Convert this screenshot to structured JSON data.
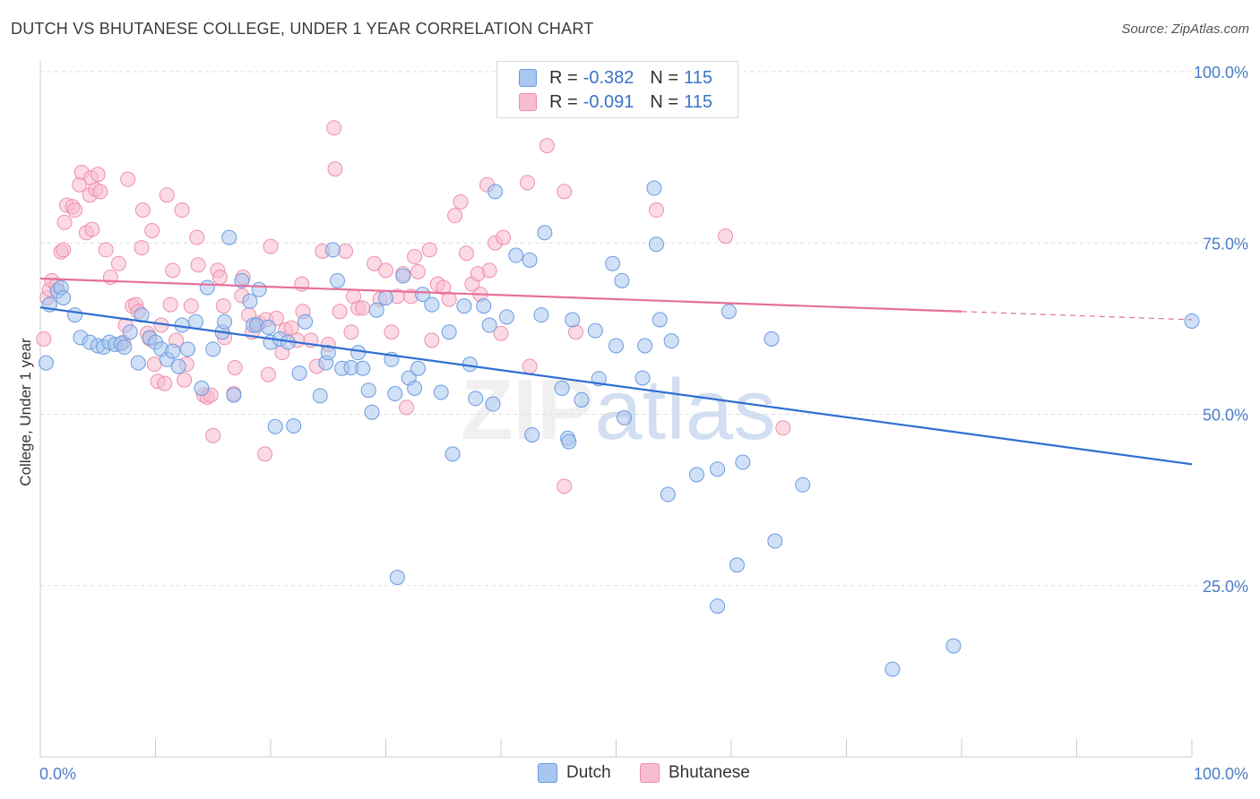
{
  "title": "DUTCH VS BHUTANESE COLLEGE, UNDER 1 YEAR CORRELATION CHART",
  "source": "Source: ZipAtlas.com",
  "watermark": "ZIPatlas",
  "legend": {
    "dutch": {
      "r_label": "R =",
      "r_value": "-0.382",
      "n_label": "N =",
      "n_value": "115"
    },
    "bhutanese": {
      "r_label": "R =",
      "r_value": "-0.091",
      "n_label": "N =",
      "n_value": "115"
    }
  },
  "colors": {
    "dutch_fill": "#a9c6ee",
    "dutch_stroke": "#6b9be0",
    "dutch_line": "#2f6fd1",
    "bhutanese_fill": "#f7bccd",
    "bhutanese_stroke": "#ee8fab",
    "bhutanese_line": "#e4709b",
    "axis_text": "#4a7cc9",
    "grid": "#dddddd"
  },
  "chart_data": {
    "type": "scatter",
    "title": "DUTCH VS BHUTANESE COLLEGE, UNDER 1 YEAR CORRELATION CHART",
    "xlabel": "",
    "ylabel": "College, Under 1 year",
    "xlim": [
      0,
      100
    ],
    "ylim": [
      0,
      100
    ],
    "x_tick_labels": [
      "0.0%",
      "100.0%"
    ],
    "y_tick_labels": [
      "25.0%",
      "50.0%",
      "75.0%",
      "100.0%"
    ],
    "y_ticks": [
      25,
      50,
      75,
      100
    ],
    "legend_position": "top-center",
    "grid": true,
    "series": [
      {
        "name": "Dutch",
        "trend": {
          "x": [
            0,
            100
          ],
          "y": [
            65.6,
            42.7
          ]
        },
        "points": [
          [
            0.5,
            57.5
          ],
          [
            0.8,
            66
          ],
          [
            1.5,
            68
          ],
          [
            1.8,
            68.5
          ],
          [
            2,
            67
          ],
          [
            3,
            64.5
          ],
          [
            3.5,
            61.2
          ],
          [
            4.3,
            60.5
          ],
          [
            5,
            60
          ],
          [
            5.5,
            59.8
          ],
          [
            6,
            60.5
          ],
          [
            6.5,
            60.2
          ],
          [
            7,
            60.3
          ],
          [
            7.3,
            59.8
          ],
          [
            7.8,
            62
          ],
          [
            8.5,
            57.5
          ],
          [
            8.8,
            64.5
          ],
          [
            9.5,
            61.2
          ],
          [
            10,
            60.5
          ],
          [
            10.5,
            59.5
          ],
          [
            11,
            58
          ],
          [
            11.5,
            59.2
          ],
          [
            12,
            57
          ],
          [
            12.3,
            63
          ],
          [
            12.8,
            59.5
          ],
          [
            13.5,
            63.5
          ],
          [
            14,
            53.8
          ],
          [
            14.5,
            68.5
          ],
          [
            15,
            59.5
          ],
          [
            15.8,
            62
          ],
          [
            16,
            63.5
          ],
          [
            16.4,
            75.8
          ],
          [
            16.8,
            52.8
          ],
          [
            17.5,
            69.5
          ],
          [
            18.2,
            66.5
          ],
          [
            18.5,
            63
          ],
          [
            18.8,
            63
          ],
          [
            19,
            68.2
          ],
          [
            19.8,
            62.7
          ],
          [
            20,
            60.5
          ],
          [
            20.4,
            48.2
          ],
          [
            20.8,
            61
          ],
          [
            21.5,
            60.5
          ],
          [
            22,
            48.3
          ],
          [
            22.5,
            56
          ],
          [
            23,
            63.5
          ],
          [
            24.3,
            52.7
          ],
          [
            24.8,
            57.5
          ],
          [
            25,
            59
          ],
          [
            25.4,
            74
          ],
          [
            25.8,
            69.5
          ],
          [
            26.2,
            56.7
          ],
          [
            27,
            56.8
          ],
          [
            27.6,
            59
          ],
          [
            28,
            56.7
          ],
          [
            28.5,
            53.5
          ],
          [
            28.8,
            50.3
          ],
          [
            29.2,
            65.2
          ],
          [
            30,
            67
          ],
          [
            30.5,
            58
          ],
          [
            30.8,
            53
          ],
          [
            31,
            26.2
          ],
          [
            31.5,
            70.2
          ],
          [
            32,
            55.3
          ],
          [
            32.5,
            53.8
          ],
          [
            32.8,
            56.7
          ],
          [
            33.2,
            67.5
          ],
          [
            34,
            66
          ],
          [
            34.8,
            53.2
          ],
          [
            35.5,
            62
          ],
          [
            35.8,
            44.2
          ],
          [
            36.8,
            65.8
          ],
          [
            37.3,
            57.3
          ],
          [
            37.8,
            52.3
          ],
          [
            38.5,
            65.8
          ],
          [
            39,
            63
          ],
          [
            39.3,
            51.5
          ],
          [
            39.5,
            82.5
          ],
          [
            40.5,
            64.2
          ],
          [
            41.3,
            73.2
          ],
          [
            42.5,
            72.5
          ],
          [
            42.7,
            47
          ],
          [
            43.5,
            64.5
          ],
          [
            43.8,
            76.5
          ],
          [
            45.3,
            53.8
          ],
          [
            45.8,
            46.5
          ],
          [
            45.9,
            46
          ],
          [
            46.2,
            63.8
          ],
          [
            47,
            52.1
          ],
          [
            48.2,
            62.2
          ],
          [
            48.5,
            55.2
          ],
          [
            49.7,
            72
          ],
          [
            50,
            60
          ],
          [
            50.5,
            69.5
          ],
          [
            50.7,
            49.5
          ],
          [
            52.3,
            55.3
          ],
          [
            52.5,
            60
          ],
          [
            53.3,
            83
          ],
          [
            53.5,
            74.8
          ],
          [
            53.8,
            63.8
          ],
          [
            54.8,
            60.7
          ],
          [
            54.5,
            38.3
          ],
          [
            57,
            41.2
          ],
          [
            58.8,
            22
          ],
          [
            58.8,
            42
          ],
          [
            59.8,
            65
          ],
          [
            60.5,
            28
          ],
          [
            61,
            43
          ],
          [
            63.5,
            61
          ],
          [
            63.8,
            31.5
          ],
          [
            66.2,
            39.7
          ],
          [
            74,
            12.8
          ],
          [
            79.3,
            16.2
          ],
          [
            100,
            63.6
          ]
        ]
      },
      {
        "name": "Bhutanese",
        "trend": {
          "x": [
            0,
            80
          ],
          "y": [
            69.8,
            65
          ]
        },
        "trend_dashed": {
          "x": [
            80,
            100
          ],
          "y": [
            65,
            63.8
          ]
        },
        "points": [
          [
            0.3,
            61
          ],
          [
            0.6,
            67
          ],
          [
            0.8,
            68.2
          ],
          [
            1,
            69.5
          ],
          [
            1.4,
            68.8
          ],
          [
            1.8,
            73.7
          ],
          [
            2,
            74
          ],
          [
            2.1,
            78
          ],
          [
            2.3,
            80.5
          ],
          [
            2.8,
            80.3
          ],
          [
            3,
            79.8
          ],
          [
            3.4,
            83.5
          ],
          [
            3.6,
            85.3
          ],
          [
            4,
            76.5
          ],
          [
            4.3,
            82
          ],
          [
            4.4,
            84.5
          ],
          [
            4.5,
            77
          ],
          [
            4.8,
            82.8
          ],
          [
            5,
            85
          ],
          [
            5.2,
            82.5
          ],
          [
            5.7,
            74
          ],
          [
            6.1,
            70
          ],
          [
            6.8,
            72
          ],
          [
            7.2,
            60.5
          ],
          [
            7.4,
            63
          ],
          [
            7.6,
            84.3
          ],
          [
            8,
            65.8
          ],
          [
            8.3,
            66
          ],
          [
            8.5,
            65
          ],
          [
            8.8,
            74.3
          ],
          [
            8.9,
            79.8
          ],
          [
            9.3,
            61.8
          ],
          [
            9.5,
            61
          ],
          [
            9.7,
            76.8
          ],
          [
            9.9,
            57.3
          ],
          [
            10.2,
            54.8
          ],
          [
            10.5,
            63
          ],
          [
            10.8,
            54.5
          ],
          [
            11,
            82
          ],
          [
            11.3,
            66
          ],
          [
            11.5,
            71
          ],
          [
            11.8,
            60.8
          ],
          [
            12.3,
            79.8
          ],
          [
            12.5,
            55
          ],
          [
            12.7,
            57.3
          ],
          [
            13.1,
            65.8
          ],
          [
            13.6,
            75.8
          ],
          [
            13.7,
            71.8
          ],
          [
            14.2,
            52.8
          ],
          [
            14.5,
            52.5
          ],
          [
            14.8,
            52.8
          ],
          [
            15,
            46.9
          ],
          [
            15.4,
            71
          ],
          [
            15.6,
            70
          ],
          [
            15.9,
            65.8
          ],
          [
            16,
            61.2
          ],
          [
            16.8,
            53
          ],
          [
            16.9,
            56.8
          ],
          [
            17.5,
            67.3
          ],
          [
            17.6,
            70
          ],
          [
            18.1,
            64.5
          ],
          [
            18.4,
            62
          ],
          [
            18.8,
            63
          ],
          [
            19,
            63.3
          ],
          [
            19.5,
            44.2
          ],
          [
            19.6,
            63.8
          ],
          [
            19.8,
            55.8
          ],
          [
            20,
            74.5
          ],
          [
            20.5,
            64
          ],
          [
            21,
            59
          ],
          [
            21.3,
            62.3
          ],
          [
            21.8,
            62.6
          ],
          [
            22.3,
            60.8
          ],
          [
            22.7,
            69
          ],
          [
            22.8,
            65
          ],
          [
            23.5,
            60.8
          ],
          [
            24,
            57
          ],
          [
            24.5,
            73.8
          ],
          [
            25,
            60.2
          ],
          [
            25.5,
            91.8
          ],
          [
            25.6,
            85.8
          ],
          [
            26,
            65
          ],
          [
            26.5,
            73.8
          ],
          [
            27,
            62
          ],
          [
            27.2,
            67.2
          ],
          [
            27.6,
            65.5
          ],
          [
            28,
            65.5
          ],
          [
            29,
            72
          ],
          [
            29.5,
            66.8
          ],
          [
            30,
            71
          ],
          [
            30.5,
            62
          ],
          [
            31,
            67.2
          ],
          [
            31.5,
            70.5
          ],
          [
            31.8,
            51
          ],
          [
            32.2,
            67.2
          ],
          [
            32.5,
            73
          ],
          [
            32.8,
            70.8
          ],
          [
            33.8,
            74
          ],
          [
            34,
            60.8
          ],
          [
            34.5,
            69
          ],
          [
            35,
            68.5
          ],
          [
            35.5,
            66.8
          ],
          [
            36,
            79
          ],
          [
            36.5,
            81
          ],
          [
            37,
            73.5
          ],
          [
            37.5,
            69
          ],
          [
            38,
            70.5
          ],
          [
            38.2,
            67.5
          ],
          [
            38.8,
            83.5
          ],
          [
            39,
            71
          ],
          [
            39.5,
            75
          ],
          [
            40,
            61.8
          ],
          [
            40.2,
            75.8
          ],
          [
            42.3,
            83.8
          ],
          [
            42.5,
            57
          ],
          [
            44,
            89.2
          ],
          [
            45.5,
            82.5
          ],
          [
            45.5,
            39.5
          ],
          [
            46.5,
            62
          ],
          [
            53.5,
            79.8
          ],
          [
            59.5,
            76
          ],
          [
            64.5,
            48
          ]
        ]
      }
    ]
  }
}
